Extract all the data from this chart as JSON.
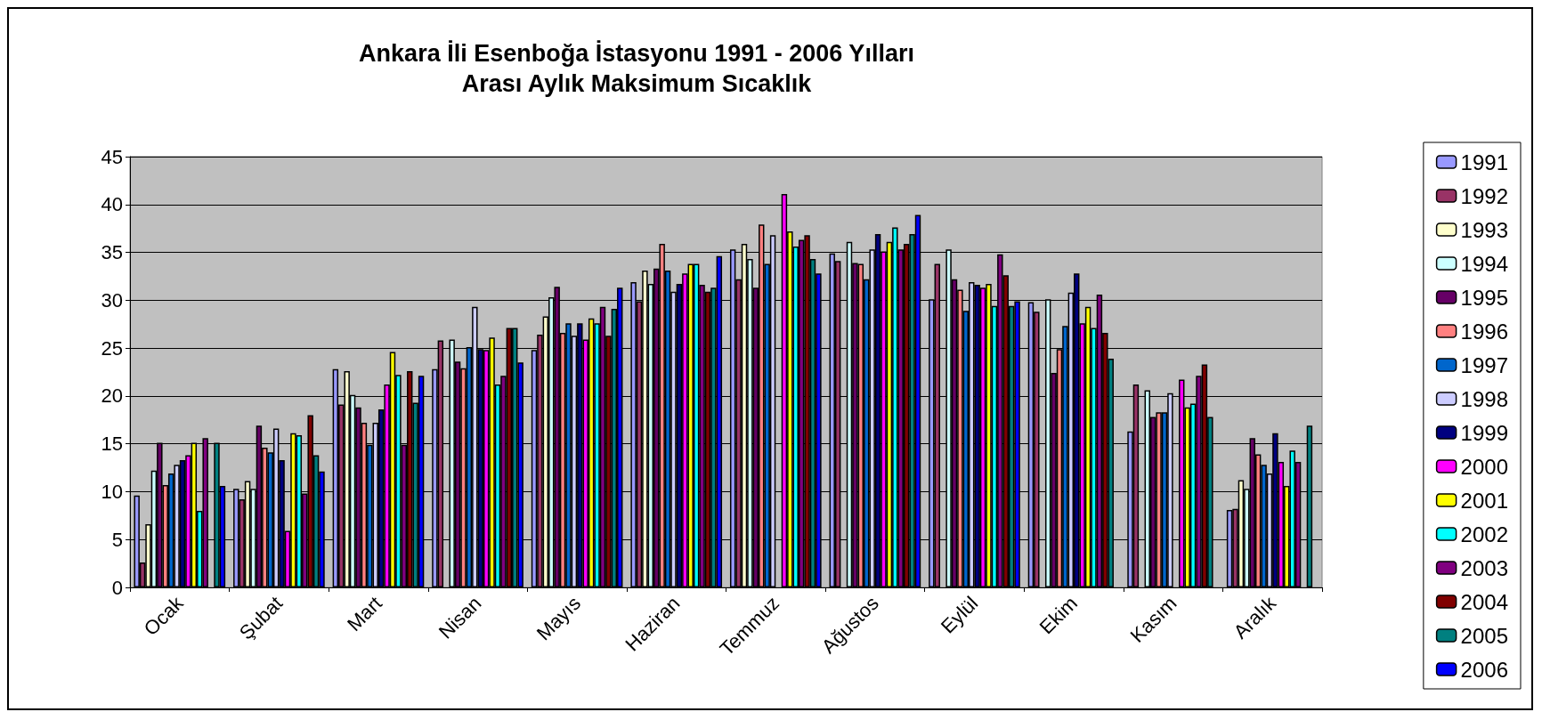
{
  "chart_data": {
    "type": "bar",
    "title": "Ankara İli Esenboğa İstasyonu 1991 - 2006 Yılları\nArası Aylık Maksimum Sıcaklık",
    "categories": [
      "Ocak",
      "Şubat",
      "Mart",
      "Nisan",
      "Mayıs",
      "Haziran",
      "Temmuz",
      "Ağustos",
      "Eylül",
      "Ekim",
      "Kasım",
      "Aralık"
    ],
    "series": [
      {
        "name": "1991",
        "color": "#9999ff",
        "values": [
          9.6,
          10.3,
          22.8,
          22.8,
          24.8,
          31.9,
          35.3,
          34.9,
          30.1,
          29.8,
          16.3,
          8.1
        ]
      },
      {
        "name": "1992",
        "color": "#993366",
        "values": [
          2.6,
          9.2,
          19.1,
          25.8,
          26.4,
          29.9,
          32.2,
          34.1,
          33.8,
          28.8,
          21.2,
          8.2
        ]
      },
      {
        "name": "1993",
        "color": "#ffffcc",
        "values": [
          6.6,
          11.1,
          22.6,
          null,
          28.3,
          33.1,
          35.9,
          null,
          null,
          null,
          null,
          11.2
        ]
      },
      {
        "name": "1994",
        "color": "#ccffff",
        "values": [
          12.2,
          10.3,
          20.1,
          25.9,
          30.3,
          31.7,
          34.3,
          36.1,
          35.3,
          30.1,
          20.6,
          10.3
        ]
      },
      {
        "name": "1995",
        "color": "#660066",
        "values": [
          15.1,
          16.9,
          18.8,
          23.6,
          31.4,
          33.3,
          31.3,
          33.9,
          32.2,
          22.4,
          17.8,
          15.6
        ]
      },
      {
        "name": "1996",
        "color": "#ff8080",
        "values": [
          10.7,
          14.6,
          17.2,
          22.9,
          26.6,
          35.9,
          37.9,
          33.8,
          31.1,
          24.9,
          18.3,
          13.9
        ]
      },
      {
        "name": "1997",
        "color": "#0066cc",
        "values": [
          11.9,
          14.1,
          14.9,
          25.1,
          27.6,
          33.1,
          33.8,
          32.2,
          28.9,
          27.3,
          18.3,
          12.8
        ]
      },
      {
        "name": "1998",
        "color": "#ccccff",
        "values": [
          12.8,
          16.6,
          17.2,
          29.3,
          26.3,
          30.9,
          36.8,
          35.3,
          31.9,
          30.8,
          20.3,
          11.9
        ]
      },
      {
        "name": "1999",
        "color": "#000080",
        "values": [
          13.3,
          13.3,
          18.6,
          24.9,
          27.6,
          31.7,
          null,
          36.9,
          31.6,
          32.8,
          null,
          16.1
        ]
      },
      {
        "name": "2000",
        "color": "#ff00ff",
        "values": [
          13.8,
          5.9,
          21.2,
          24.8,
          25.9,
          32.8,
          41.1,
          35.1,
          31.3,
          27.6,
          21.7,
          13.1
        ]
      },
      {
        "name": "2001",
        "color": "#ffff00",
        "values": [
          15.1,
          16.1,
          24.6,
          26.1,
          28.1,
          33.8,
          37.2,
          36.1,
          31.7,
          29.3,
          18.8,
          10.6
        ]
      },
      {
        "name": "2002",
        "color": "#00ffff",
        "values": [
          8.0,
          15.9,
          22.2,
          21.2,
          27.6,
          33.8,
          35.6,
          37.6,
          29.4,
          27.1,
          19.2,
          14.3
        ]
      },
      {
        "name": "2003",
        "color": "#800080",
        "values": [
          15.6,
          9.8,
          14.9,
          22.1,
          29.3,
          31.6,
          36.3,
          35.3,
          34.8,
          30.6,
          22.1,
          13.1
        ]
      },
      {
        "name": "2004",
        "color": "#800000",
        "values": [
          null,
          18.0,
          22.6,
          27.1,
          26.3,
          30.9,
          36.8,
          35.9,
          32.6,
          26.6,
          23.3,
          null
        ]
      },
      {
        "name": "2005",
        "color": "#008080",
        "values": [
          15.1,
          13.8,
          19.3,
          27.1,
          29.1,
          31.3,
          34.3,
          36.9,
          29.4,
          23.9,
          17.8,
          16.9
        ]
      },
      {
        "name": "2006",
        "color": "#0000ff",
        "values": [
          10.6,
          12.1,
          22.1,
          23.5,
          31.3,
          34.6,
          32.8,
          38.9,
          29.9,
          null,
          null,
          null
        ]
      }
    ],
    "ylim": [
      0,
      45
    ],
    "yticks": [
      0,
      5,
      10,
      15,
      20,
      25,
      30,
      35,
      40,
      45
    ],
    "grid": "y",
    "legend": "right"
  }
}
